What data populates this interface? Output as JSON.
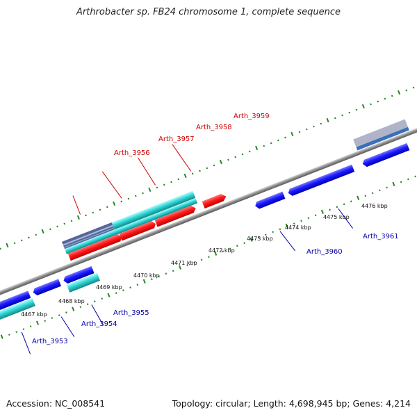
{
  "title": "Arthrobacter sp. FB24 chromosome 1, complete sequence",
  "footer": {
    "accession": "Accession: NC_008541",
    "summary": "Topology: circular; Length: 4,698,945 bp; Genes: 4,214"
  },
  "colors": {
    "forward_cds": "#ff1a1a",
    "reverse_cds": "#1a1aff",
    "rna_gene": "#33d6d6",
    "other_gene": "#556699",
    "tick": "#228822",
    "backbone": "#8a8a8a",
    "forward_label": "#cc0000",
    "reverse_label": "#0000aa"
  },
  "scale_labels": [
    "4467 kbp",
    "4468 kbp",
    "4469 kbp",
    "4470 kbp",
    "4471 kbp",
    "4472 kbp",
    "4473 kbp",
    "4474 kbp",
    "4475 kbp",
    "4476 kbp"
  ],
  "forward_genes": [
    "Arth_3956",
    "Arth_3957",
    "Arth_3958",
    "Arth_3959"
  ],
  "reverse_genes": [
    "Arth_3953",
    "Arth_3954",
    "Arth_3955",
    "Arth_3960",
    "Arth_3961"
  ]
}
